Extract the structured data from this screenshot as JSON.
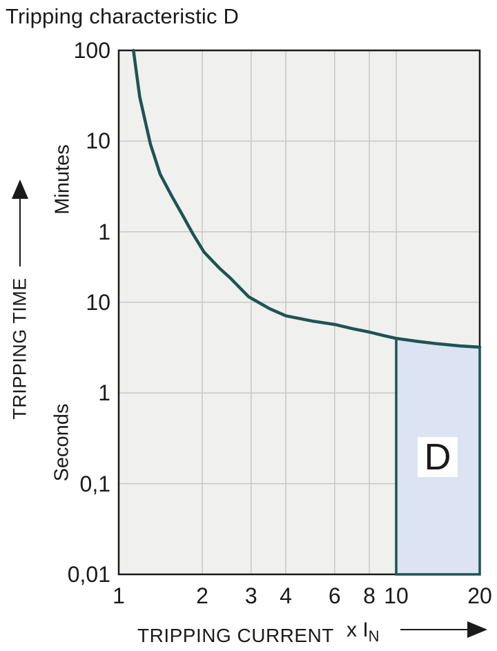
{
  "title": "Tripping characteristic D",
  "colors": {
    "curve": "#1e5353",
    "region_fill": "#dce3f3",
    "region_border": "#1e5353",
    "plot_background": "#f0f0ee",
    "gridline": "#c7c7c7",
    "frame": "#1a1a1a",
    "text": "#1a1a1a",
    "region_label_background": "#ffffff"
  },
  "chart_data": {
    "type": "line",
    "title": "Tripping characteristic D",
    "x_scale": "log",
    "y_scale": "log",
    "grid": true,
    "xlabel": "TRIPPING CURRENT",
    "x_unit": "x I",
    "x_unit_sub": "N",
    "ylabel": "TRIPPING TIME",
    "y_unit_upper": "Minutes",
    "y_unit_lower": "Seconds",
    "xlim": [
      1,
      20
    ],
    "ylim_seconds": [
      0.01,
      6000
    ],
    "x_ticks": [
      {
        "label": "1",
        "value": 1
      },
      {
        "label": "2",
        "value": 2
      },
      {
        "label": "3",
        "value": 3
      },
      {
        "label": "4",
        "value": 4
      },
      {
        "label": "6",
        "value": 6
      },
      {
        "label": "8",
        "value": 8
      },
      {
        "label": "10",
        "value": 10
      },
      {
        "label": "20",
        "value": 20
      }
    ],
    "y_ticks": [
      {
        "label": "100",
        "seconds": 6000,
        "unit": "Minutes"
      },
      {
        "label": "10",
        "seconds": 600,
        "unit": "Minutes"
      },
      {
        "label": "1",
        "seconds": 60,
        "unit": "Minutes"
      },
      {
        "label": "10",
        "seconds": 10,
        "unit": "Seconds"
      },
      {
        "label": "1",
        "seconds": 1,
        "unit": "Seconds"
      },
      {
        "label": "0,1",
        "seconds": 0.1,
        "unit": "Seconds"
      },
      {
        "label": "0,01",
        "seconds": 0.01,
        "unit": "Seconds"
      }
    ],
    "series": [
      {
        "name": "D tripping curve",
        "points_x_in_y_seconds": [
          [
            1.13,
            6000
          ],
          [
            1.16,
            3300
          ],
          [
            1.19,
            1850
          ],
          [
            1.25,
            950
          ],
          [
            1.3,
            560
          ],
          [
            1.41,
            259
          ],
          [
            1.55,
            150
          ],
          [
            1.69,
            94
          ],
          [
            1.85,
            57
          ],
          [
            2.03,
            35.8
          ],
          [
            2.3,
            24
          ],
          [
            2.53,
            18.4
          ],
          [
            2.94,
            11.5
          ],
          [
            3.5,
            8.5
          ],
          [
            4.0,
            7.1
          ],
          [
            5.0,
            6.2
          ],
          [
            6.0,
            5.7
          ],
          [
            7.0,
            5.1
          ],
          [
            8.0,
            4.7
          ],
          [
            9.0,
            4.3
          ],
          [
            10.0,
            4.0
          ],
          [
            12.0,
            3.7
          ],
          [
            14.0,
            3.5
          ],
          [
            17.0,
            3.3
          ],
          [
            20.0,
            3.2
          ]
        ]
      }
    ],
    "region": {
      "label": "D",
      "x_range": [
        10,
        20
      ],
      "y_bottom_seconds": 0.01,
      "top_follows_curve": true
    }
  }
}
